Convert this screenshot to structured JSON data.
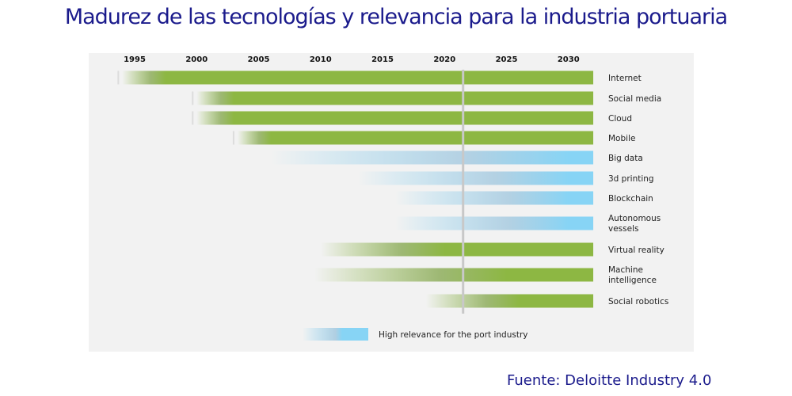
{
  "header": {
    "title": "Madurez de las tecnologías y relevancia para la industria portuaria"
  },
  "footer": {
    "source": "Fuente:  Deloitte Industry 4.0"
  },
  "colors": {
    "green": "#8db743",
    "blue": "#87d4f5",
    "current_line": "#c8c8c8",
    "title": "#1b1b8c"
  },
  "chart_data": {
    "type": "bar",
    "orientation": "horizontal-timeline",
    "title": "Madurez de las tecnologías y relevancia para la industria portuaria",
    "xlabel": "",
    "ylabel": "",
    "x_ticks": [
      "1995",
      "2000",
      "2005",
      "2010",
      "2015",
      "2020",
      "2025",
      "2030"
    ],
    "xlim": [
      1994,
      2032
    ],
    "current_year_marker": 2021.5,
    "grid": false,
    "legend": {
      "position": "bottom",
      "entries": [
        {
          "label": "High relevance for the port industry",
          "color": "blue"
        }
      ]
    },
    "series": [
      {
        "name": "Internet",
        "label_lines": [
          "Internet"
        ],
        "start": 1994,
        "full_from": 1997.5,
        "end": 2032,
        "color": "green"
      },
      {
        "name": "Social media",
        "label_lines": [
          "Social media"
        ],
        "start": 2000,
        "full_from": 2003,
        "end": 2032,
        "color": "green"
      },
      {
        "name": "Cloud",
        "label_lines": [
          "Cloud"
        ],
        "start": 2000,
        "full_from": 2003,
        "end": 2032,
        "color": "green"
      },
      {
        "name": "Mobile",
        "label_lines": [
          "Mobile"
        ],
        "start": 2003.3,
        "full_from": 2006,
        "end": 2032,
        "color": "green"
      },
      {
        "name": "Big data",
        "label_lines": [
          "Big data"
        ],
        "start": 2006,
        "full_from": 2030,
        "end": 2032,
        "color": "blue"
      },
      {
        "name": "3d printing",
        "label_lines": [
          "3d printing"
        ],
        "start": 2013,
        "full_from": 2030,
        "end": 2032,
        "color": "blue"
      },
      {
        "name": "Blockchain",
        "label_lines": [
          "Blockchain"
        ],
        "start": 2016,
        "full_from": 2030,
        "end": 2032,
        "color": "blue"
      },
      {
        "name": "Autonomous vessels",
        "label_lines": [
          "Autonomous",
          "vessels"
        ],
        "start": 2016,
        "full_from": 2030,
        "end": 2032,
        "color": "blue"
      },
      {
        "name": "Virtual reality",
        "label_lines": [
          "Virtual reality"
        ],
        "start": 2010,
        "full_from": 2020,
        "end": 2032,
        "color": "green"
      },
      {
        "name": "Machine intelligence",
        "label_lines": [
          "Machine",
          "intelligence"
        ],
        "start": 2009.5,
        "full_from": 2025,
        "end": 2032,
        "color": "green"
      },
      {
        "name": "Social robotics",
        "label_lines": [
          "Social robotics"
        ],
        "start": 2018.5,
        "full_from": 2026,
        "end": 2032,
        "color": "green"
      }
    ]
  }
}
